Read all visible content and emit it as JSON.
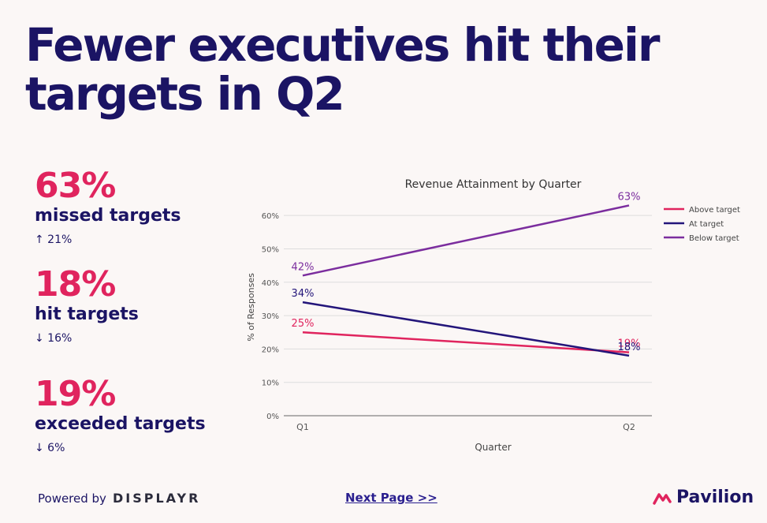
{
  "headline": "Fewer executives hit their targets in Q2",
  "stats": [
    {
      "pct": "63%",
      "label": "missed targets",
      "change": "↑ 21%"
    },
    {
      "pct": "18%",
      "label": "hit targets",
      "change": "↓ 16%"
    },
    {
      "pct": "19%",
      "label": "exceeded targets",
      "change": "↓ 6%"
    }
  ],
  "chart_data": {
    "type": "line",
    "title": "Revenue Attainment by Quarter",
    "xlabel": "Quarter",
    "ylabel": "% of Responses",
    "categories": [
      "Q1",
      "Q2"
    ],
    "yticks": [
      "0%",
      "10%",
      "20%",
      "30%",
      "40%",
      "50%",
      "60%"
    ],
    "ylim": [
      0,
      65
    ],
    "grid": true,
    "legend": "right",
    "series": [
      {
        "name": "Above target",
        "values": [
          25,
          19
        ],
        "labels": [
          "25%",
          "19%"
        ],
        "color": "#e0245e"
      },
      {
        "name": "At target",
        "values": [
          34,
          18
        ],
        "labels": [
          "34%",
          "18%"
        ],
        "color": "#23157a"
      },
      {
        "name": "Below target",
        "values": [
          42,
          63
        ],
        "labels": [
          "42%",
          "63%"
        ],
        "color": "#7b2d9e"
      }
    ]
  },
  "footer": {
    "powered_by": "Powered by",
    "brand": "DISPLAYR",
    "next_page": "Next Page >>",
    "logo": "Pavilion"
  }
}
